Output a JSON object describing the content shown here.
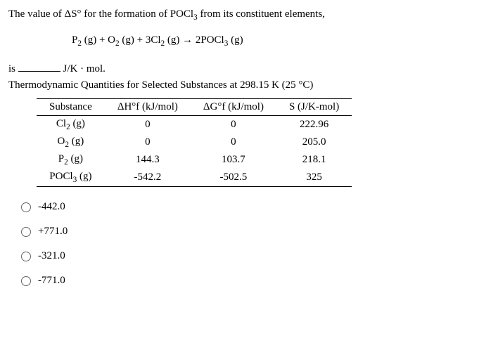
{
  "question": {
    "prefix": "The value of ΔS° for the formation of POCl",
    "sub1": "3",
    "suffix": " from its constituent elements,"
  },
  "equation": {
    "p1": "P",
    "s1": "2",
    "t1": " (g) + O",
    "s2": "2",
    "t2": " (g) + 3Cl",
    "s3": "2",
    "t3": " (g) → 2POCl",
    "s4": "3",
    "t4": " (g)"
  },
  "fill": {
    "prefix": "is ",
    "suffix": " J/K · mol."
  },
  "tableTitle": "Thermodynamic Quantities for Selected Substances at 298.15 K (25 °C)",
  "headers": {
    "c1": "Substance",
    "c2": "ΔH°f (kJ/mol)",
    "c3": "ΔG°f (kJ/mol)",
    "c4": "S (J/K-mol)"
  },
  "rows": [
    {
      "name": "Cl",
      "sub": "2",
      "phase": " (g)",
      "dh": "0",
      "dg": "0",
      "s": "222.96"
    },
    {
      "name": "O",
      "sub": "2",
      "phase": " (g)",
      "dh": "0",
      "dg": "0",
      "s": "205.0"
    },
    {
      "name": "P",
      "sub": "2",
      "phase": " (g)",
      "dh": "144.3",
      "dg": "103.7",
      "s": "218.1"
    },
    {
      "name": "POCl",
      "sub": "3",
      "phase": " (g)",
      "dh": "-542.2",
      "dg": "-502.5",
      "s": "325"
    }
  ],
  "options": [
    "-442.0",
    "+771.0",
    "-321.0",
    "-771.0"
  ]
}
